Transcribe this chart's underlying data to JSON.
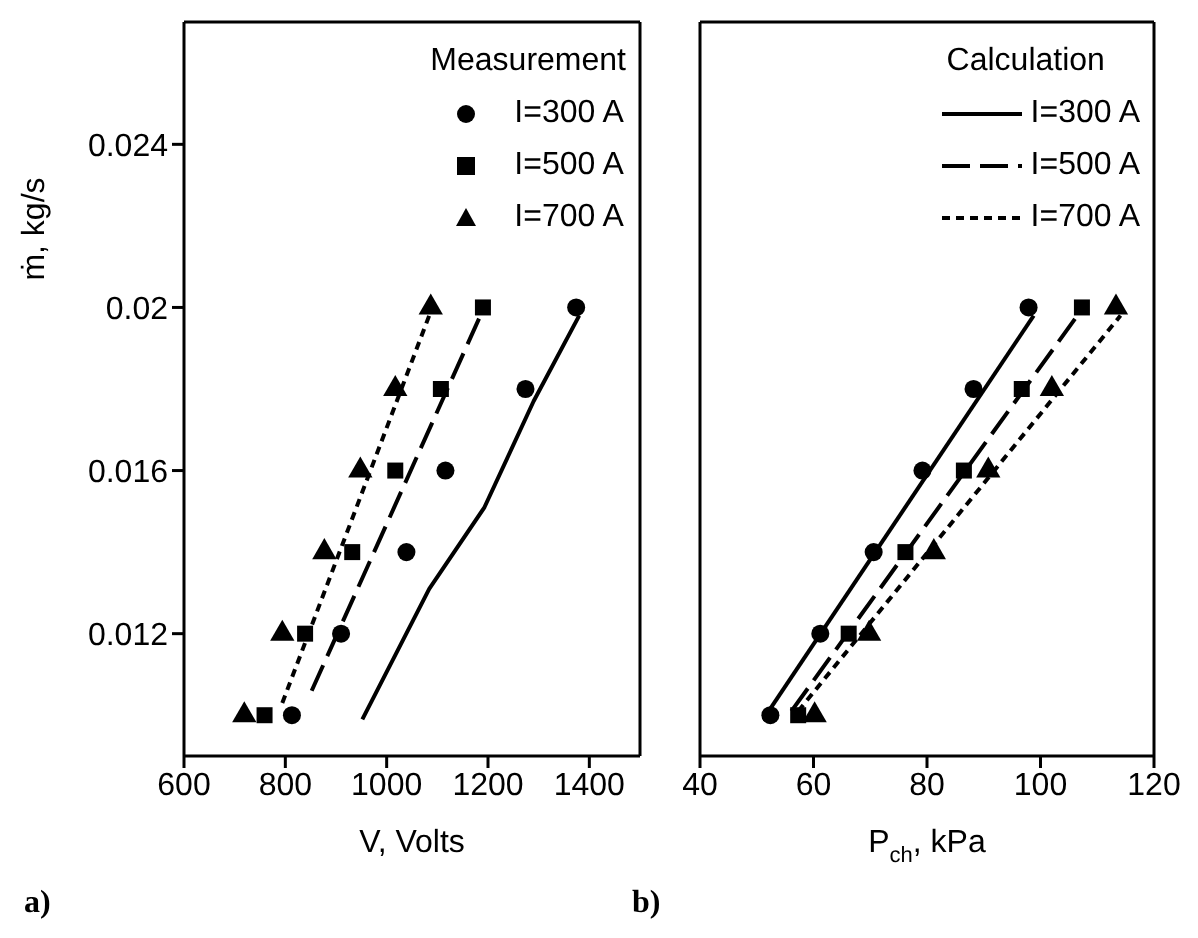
{
  "chart_data": [
    {
      "type": "scatter",
      "xlabel": "V, Volts",
      "ylabel": "ṁ, kg/s",
      "legend_title": "Measurement",
      "legend": "top right",
      "xlim": [
        600,
        1500
      ],
      "xticks": [
        600,
        800,
        1000,
        1200,
        1400
      ],
      "ylim": [
        0.009,
        0.027
      ],
      "yticks": [
        0.012,
        0.016,
        0.02,
        0.024
      ],
      "annotations": [
        "a)"
      ],
      "series": [
        {
          "name": "I=300 A",
          "marker": "circle",
          "color": "#000000",
          "x": [
            813,
            910,
            1039,
            1116,
            1274,
            1374
          ],
          "values": [
            0.01,
            0.012,
            0.014,
            0.016,
            0.018,
            0.02
          ]
        },
        {
          "name": "I=500 A",
          "marker": "square",
          "color": "#000000",
          "x": [
            759,
            839,
            932,
            1017,
            1107,
            1190
          ],
          "values": [
            0.01,
            0.012,
            0.014,
            0.016,
            0.018,
            0.02
          ]
        },
        {
          "name": "I=700 A",
          "marker": "triangle",
          "color": "#000000",
          "x": [
            719,
            794,
            877,
            948,
            1017,
            1087
          ],
          "values": [
            0.01,
            0.012,
            0.014,
            0.016,
            0.018,
            0.02
          ]
        },
        {
          "type": "line",
          "marker": "none",
          "line_style": "solid",
          "color": "#000000",
          "x": [
            952,
            1084,
            1193,
            1290,
            1380
          ],
          "values": [
            0.0099,
            0.0131,
            0.0151,
            0.0177,
            0.0198
          ]
        },
        {
          "type": "line",
          "marker": "none",
          "line_style": "dashed",
          "color": "#000000",
          "x": [
            852,
            1185
          ],
          "values": [
            0.0106,
            0.0198
          ]
        },
        {
          "type": "line",
          "marker": "none",
          "line_style": "dotted",
          "color": "#000000",
          "x": [
            794,
            1084
          ],
          "values": [
            0.0103,
            0.0198
          ]
        }
      ]
    },
    {
      "type": "line",
      "xlabel": "P$_{ch}$, kPa",
      "legend_title": "Calculation",
      "legend": "top right",
      "tick_labels": "x",
      "xlim": [
        40,
        120
      ],
      "xticks": [
        40,
        60,
        80,
        100,
        120
      ],
      "ylim": [
        0.009,
        0.027
      ],
      "yticks": [
        0.012,
        0.016,
        0.02,
        0.024
      ],
      "annotations": [
        "b)"
      ],
      "series": [
        {
          "type": "scatter",
          "marker": "circle",
          "color": "#000000",
          "x": [
            52.4,
            61.2,
            70.6,
            79.2,
            88.2,
            97.9
          ],
          "values": [
            0.01,
            0.012,
            0.014,
            0.016,
            0.018,
            0.02
          ]
        },
        {
          "type": "scatter",
          "marker": "square",
          "color": "#000000",
          "x": [
            57.3,
            66.2,
            76.2,
            86.5,
            96.7,
            107.3
          ],
          "values": [
            0.01,
            0.012,
            0.014,
            0.016,
            0.018,
            0.02
          ]
        },
        {
          "type": "scatter",
          "marker": "triangle",
          "color": "#000000",
          "x": [
            60.2,
            69.8,
            81.2,
            90.8,
            102,
            113.3
          ],
          "values": [
            0.01,
            0.012,
            0.014,
            0.016,
            0.018,
            0.02
          ]
        },
        {
          "name": "I=300 A",
          "marker": "none",
          "line_style": "solid",
          "color": "#000000",
          "x": [
            52.1,
            98.8
          ],
          "values": [
            0.0101,
            0.0198
          ]
        },
        {
          "name": "I=500 A",
          "marker": "none",
          "line_style": "dashed",
          "color": "#000000",
          "x": [
            56.1,
            106.5
          ],
          "values": [
            0.0101,
            0.0198
          ]
        },
        {
          "name": "I=700 A",
          "marker": "none",
          "line_style": "dotted",
          "color": "#000000",
          "x": [
            57.3,
            114.1
          ],
          "values": [
            0.0101,
            0.0198
          ]
        }
      ]
    }
  ]
}
